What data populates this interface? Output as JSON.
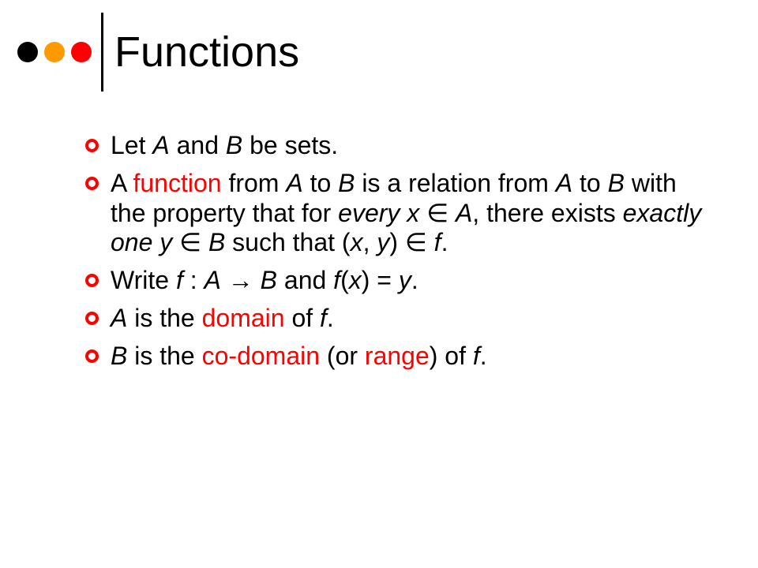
{
  "title": "Functions",
  "header_dots": [
    "#000000",
    "#ff9900",
    "#ff0000"
  ],
  "divider_color": "#000000",
  "bullet_ring_color": "#ff0000",
  "title_fontsize": 54,
  "body_fontsize": 32,
  "background_color": "#ffffff",
  "text_color": "#000000",
  "bullets": {
    "b1": {
      "t1": "Let ",
      "A": "A",
      "t2": " and ",
      "B": "B",
      "t3": " be sets."
    },
    "b2": {
      "t1": "A ",
      "fn": "function",
      "t2": " from ",
      "A1": "A",
      "t3": " to ",
      "B1": "B",
      "t4": " is a relation from ",
      "A2": "A",
      "t5": " to ",
      "B2": "B",
      "t6": " with the property that for ",
      "every": "every",
      "sp1": " ",
      "x1": "x",
      "in1": " ∈ ",
      "A3": "A",
      "t7": ", there exists ",
      "exact": "exactly one",
      "sp2": " ",
      "y1": "y",
      "in2": " ∈ ",
      "B3": "B",
      "t8": " such that (",
      "x2": "x",
      "comma": ", ",
      "y2": "y",
      "t9": ") ",
      "in3": "∈ ",
      "f1": "f",
      "t10": "."
    },
    "b3": {
      "t1": "Write ",
      "f1": "f",
      "t2": " : ",
      "A": "A",
      "arrow": " → ",
      "B": "B",
      "t3": " and ",
      "f2": "f",
      "lp": "(",
      "x": "x",
      "rp": ") = ",
      "y": "y",
      "t4": "."
    },
    "b4": {
      "A": "A",
      "t1": " is the ",
      "dom": "domain",
      "t2": " of ",
      "f": "f",
      "t3": "."
    },
    "b5": {
      "B": "B",
      "t1": " is the ",
      "codom": "co-domain",
      "t2": " (or ",
      "range": "range",
      "t3": ") of ",
      "f": "f",
      "t4": "."
    }
  }
}
